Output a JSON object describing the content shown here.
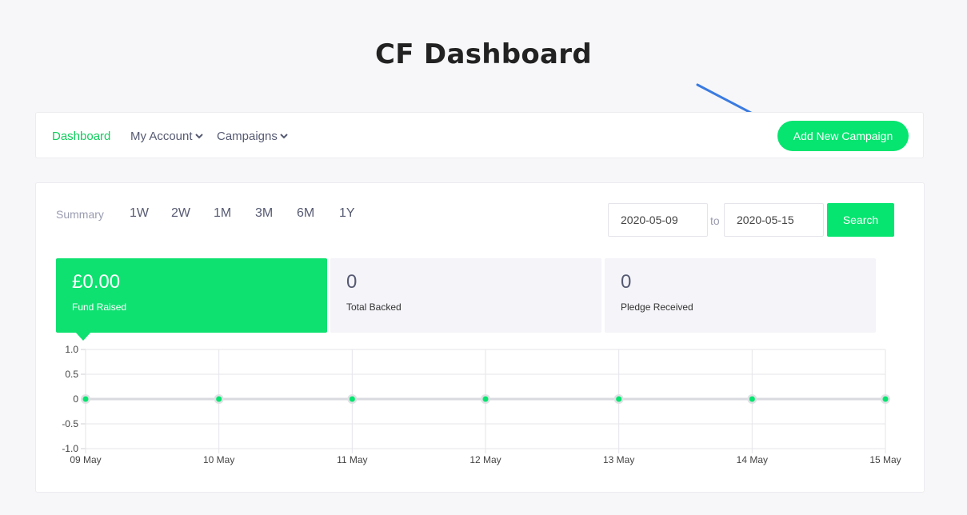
{
  "page": {
    "title": "CF Dashboard"
  },
  "nav": {
    "items": [
      {
        "label": "Dashboard",
        "active": true
      },
      {
        "label": "My Account",
        "dropdown": true
      },
      {
        "label": "Campaigns",
        "dropdown": true
      }
    ],
    "add_button": "Add New Campaign"
  },
  "filters": {
    "summary_label": "Summary",
    "ranges": [
      "1W",
      "2W",
      "1M",
      "3M",
      "6M",
      "1Y"
    ],
    "date_from": "2020-05-09",
    "to_label": "to",
    "date_to": "2020-05-15",
    "search_label": "Search"
  },
  "stats": [
    {
      "value": "£0.00",
      "label": "Fund Raised",
      "active": true
    },
    {
      "value": "0",
      "label": "Total Backed",
      "active": false
    },
    {
      "value": "0",
      "label": "Pledge Received",
      "active": false
    }
  ],
  "colors": {
    "accent": "#05e56f",
    "active_nav": "#0fcf5c",
    "arrow": "#3b7be0"
  },
  "chart_data": {
    "type": "line",
    "categories": [
      "09 May",
      "10 May",
      "11 May",
      "12 May",
      "13 May",
      "14 May",
      "15 May"
    ],
    "series": [
      {
        "values": [
          0,
          0,
          0,
          0,
          0,
          0,
          0
        ]
      }
    ],
    "ylim": [
      -1.0,
      1.0
    ],
    "y_ticks": [
      "1.0",
      "0.5",
      "0",
      "-0.5",
      "-1.0"
    ],
    "grid": true,
    "title": "",
    "xlabel": "",
    "ylabel": ""
  }
}
